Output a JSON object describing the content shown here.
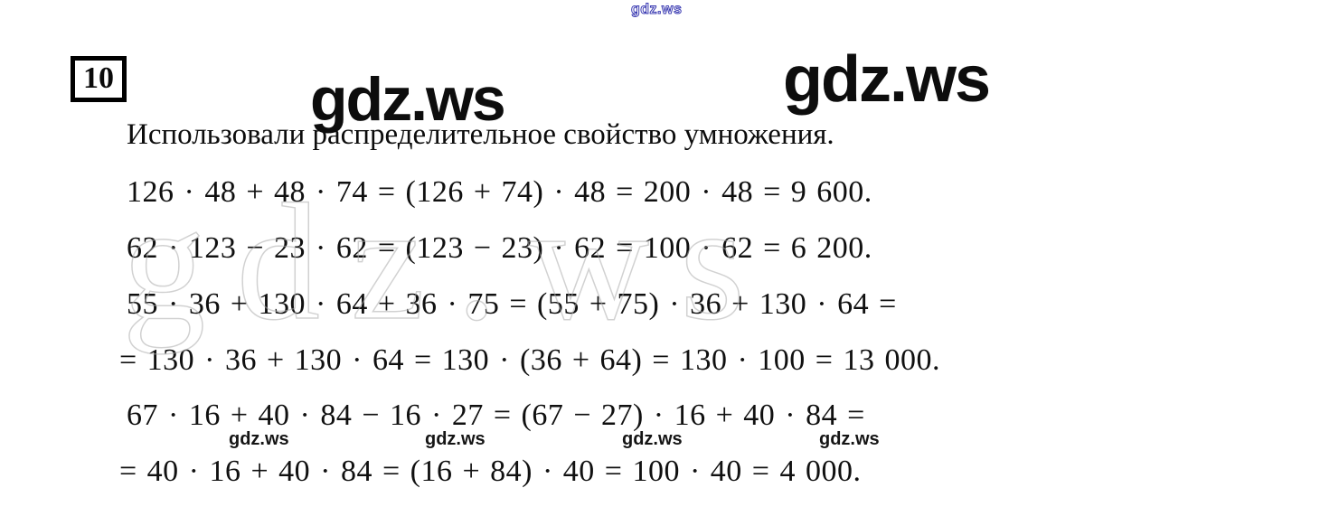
{
  "page": {
    "background": "#ffffff"
  },
  "watermarks": {
    "top": "gdz.ws",
    "big_left": "gdz.ws",
    "big_right": "gdz.ws",
    "faint_outline": "gdz.ws",
    "bottom": [
      "gdz.ws",
      "gdz.ws",
      "gdz.ws",
      "gdz.ws"
    ],
    "top_color": "#3b3bb2",
    "dark_color": "#0d0d0d",
    "faint_color": "#adadad"
  },
  "problem": {
    "number": "10",
    "statement": "Использовали распределительное свойство умножения."
  },
  "solution": {
    "lines": [
      "126 · 48 + 48 · 74 = (126 + 74) · 48 = 200 · 48 = 9 600.",
      "62 · 123 − 23 · 62 = (123 − 23) · 62 = 100 · 62 = 6 200.",
      "55 · 36 + 130 · 64 + 36 · 75 = (55 + 75) · 36 + 130 · 64 =",
      "= 130 · 36 + 130 · 64 = 130 · (36 + 64) = 130 · 100 = 13 000.",
      "67 · 16 + 40 · 84 − 16 · 27 = (67 − 27) · 16 + 40 · 84 =",
      "= 40 · 16 + 40 · 84 = (16 + 84) · 40 = 100 · 40 = 4 000."
    ]
  }
}
